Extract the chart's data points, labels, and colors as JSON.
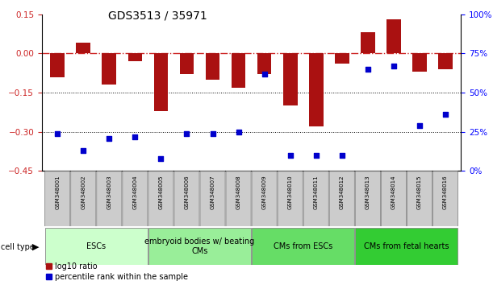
{
  "title": "GDS3513 / 35971",
  "samples": [
    "GSM348001",
    "GSM348002",
    "GSM348003",
    "GSM348004",
    "GSM348005",
    "GSM348006",
    "GSM348007",
    "GSM348008",
    "GSM348009",
    "GSM348010",
    "GSM348011",
    "GSM348012",
    "GSM348013",
    "GSM348014",
    "GSM348015",
    "GSM348016"
  ],
  "log10_ratio": [
    -0.09,
    0.04,
    -0.12,
    -0.03,
    -0.22,
    -0.08,
    -0.1,
    -0.13,
    -0.08,
    -0.2,
    -0.28,
    -0.04,
    0.08,
    0.13,
    -0.07,
    -0.06
  ],
  "percentile_rank": [
    24,
    13,
    21,
    22,
    8,
    24,
    24,
    25,
    62,
    10,
    10,
    10,
    65,
    67,
    29,
    36
  ],
  "cell_types": [
    {
      "label": "ESCs",
      "start": 0,
      "end": 3,
      "color": "#ccffcc"
    },
    {
      "label": "embryoid bodies w/ beating\nCMs",
      "start": 4,
      "end": 7,
      "color": "#99ee99"
    },
    {
      "label": "CMs from ESCs",
      "start": 8,
      "end": 11,
      "color": "#66dd66"
    },
    {
      "label": "CMs from fetal hearts",
      "start": 12,
      "end": 15,
      "color": "#33cc33"
    }
  ],
  "bar_color": "#aa1111",
  "dot_color": "#0000cc",
  "dashed_line_color": "#cc2222",
  "left_ylim": [
    -0.45,
    0.15
  ],
  "right_ylim": [
    0,
    100
  ],
  "left_yticks": [
    0.15,
    0.0,
    -0.15,
    -0.3,
    -0.45
  ],
  "right_yticks": [
    100,
    75,
    50,
    25,
    0
  ],
  "hlines": [
    -0.15,
    -0.3
  ],
  "background_color": "#ffffff",
  "ct_colors": [
    "#ccffcc",
    "#99ee99",
    "#66dd66",
    "#33cc33"
  ]
}
